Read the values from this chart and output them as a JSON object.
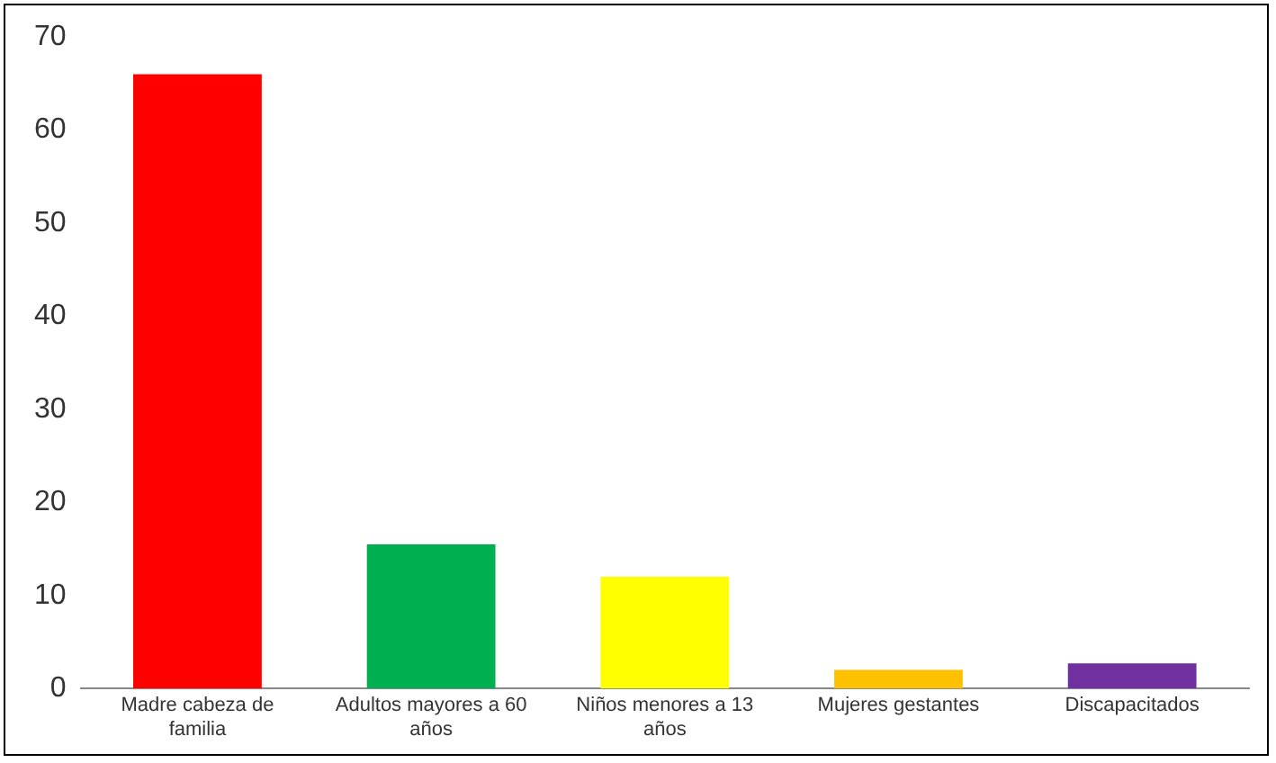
{
  "chart_data": {
    "type": "bar",
    "categories": [
      "Madre cabeza de familia",
      "Adultos mayores a 60 años",
      "Niños menores a 13 años",
      "Mujeres gestantes",
      "Discapacitados"
    ],
    "values": [
      66,
      15.5,
      12,
      2,
      2.7
    ],
    "colors": [
      "#ff0000",
      "#00b050",
      "#ffff00",
      "#ffc000",
      "#7030a0"
    ],
    "ylim": [
      0,
      70
    ],
    "yticks": [
      0,
      10,
      20,
      30,
      40,
      50,
      60,
      70
    ],
    "grid": false,
    "legend": false
  }
}
